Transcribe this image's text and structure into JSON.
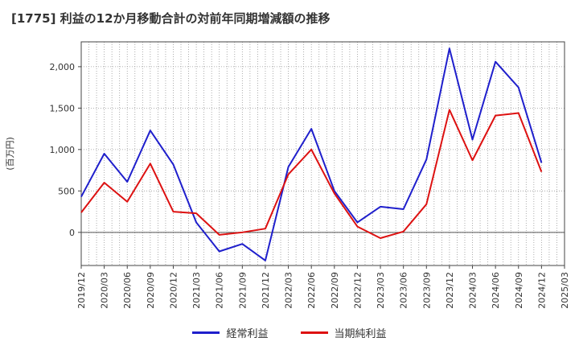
{
  "chart_data": {
    "type": "line",
    "title": "[1775]  利益の12か月移動合計の対前年同期増減額の推移",
    "ylabel": "(百万円)",
    "xlabel": "",
    "ylim": [
      -400,
      2300
    ],
    "yticks": [
      0,
      500,
      1000,
      1500,
      2000
    ],
    "ytick_labels": [
      "0",
      "500",
      "1,000",
      "1,500",
      "2,000"
    ],
    "categories": [
      "2019/12",
      "2020/03",
      "2020/06",
      "2020/09",
      "2020/12",
      "2021/03",
      "2021/06",
      "2021/09",
      "2021/12",
      "2022/03",
      "2022/06",
      "2022/09",
      "2022/12",
      "2023/03",
      "2023/06",
      "2023/09",
      "2023/12",
      "2024/03",
      "2024/06",
      "2024/09",
      "2024/12",
      "2025/03"
    ],
    "series": [
      {
        "name": "経常利益",
        "color": "#1f1fcc",
        "values": [
          430,
          950,
          610,
          1230,
          820,
          120,
          -230,
          -140,
          -340,
          790,
          1250,
          500,
          120,
          310,
          280,
          880,
          2220,
          1120,
          2060,
          1750,
          840,
          null
        ]
      },
      {
        "name": "当期純利益",
        "color": "#dd1111",
        "values": [
          240,
          600,
          370,
          830,
          250,
          230,
          -30,
          0,
          45,
          700,
          1000,
          470,
          70,
          -70,
          10,
          340,
          1480,
          870,
          1410,
          1440,
          730,
          null
        ]
      }
    ],
    "grid": true,
    "legend_position": "bottom"
  }
}
